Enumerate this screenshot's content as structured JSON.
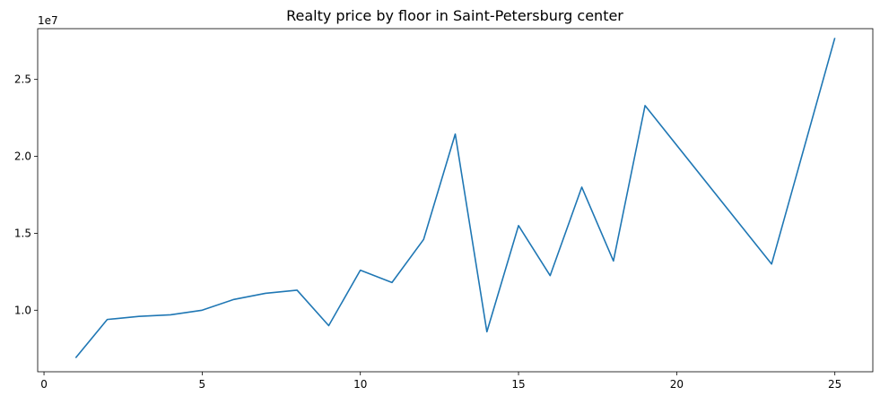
{
  "chart_data": {
    "type": "line",
    "title": "Realty price by floor in Saint-Petersburg center",
    "xlabel": "",
    "ylabel": "",
    "y_offset_label": "1e7",
    "xlim": [
      -0.2,
      26.2
    ],
    "ylim": [
      0.6,
      2.83
    ],
    "x_ticks": [
      0,
      5,
      10,
      15,
      20,
      25
    ],
    "y_ticks": [
      1.0,
      1.5,
      2.0,
      2.5
    ],
    "x_tick_labels": [
      "0",
      "5",
      "10",
      "15",
      "20",
      "25"
    ],
    "y_tick_labels": [
      "1.0",
      "1.5",
      "2.0",
      "2.5"
    ],
    "grid": false,
    "color": "#1f77b4",
    "series": [
      {
        "x": [
          1,
          2,
          3,
          4,
          5,
          6,
          7,
          8,
          9,
          10,
          11,
          12,
          13,
          14,
          15,
          16,
          17,
          18,
          19,
          23,
          25
        ],
        "y": [
          0.69,
          0.94,
          0.96,
          0.97,
          1.0,
          1.07,
          1.11,
          1.13,
          0.9,
          1.26,
          1.18,
          1.46,
          2.145,
          0.86,
          1.55,
          1.225,
          1.8,
          1.32,
          2.33,
          1.3,
          2.77
        ]
      }
    ]
  }
}
